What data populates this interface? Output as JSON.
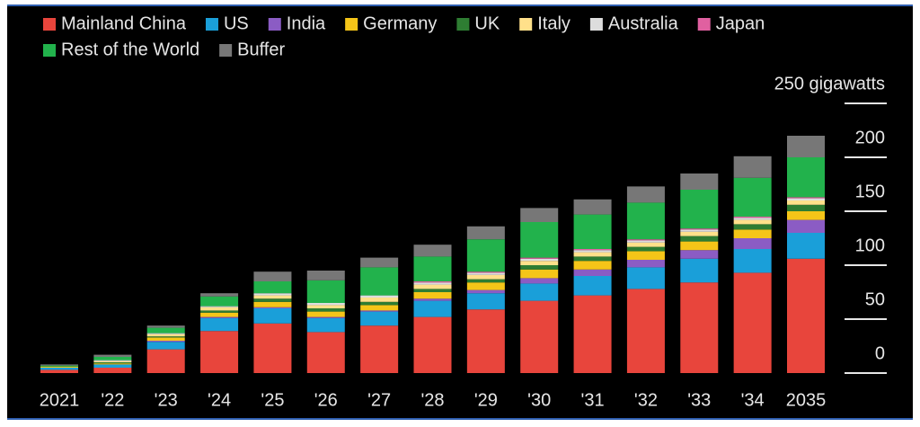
{
  "chart_data": {
    "type": "stacked_bar",
    "categories": [
      "2021",
      "'22",
      "'23",
      "'24",
      "'25",
      "'26",
      "'27",
      "'28",
      "'29",
      "'30",
      "'31",
      "'32",
      "'33",
      "'34",
      "2035"
    ],
    "series": [
      {
        "name": "Mainland China",
        "color": "#e8453c",
        "values": [
          3,
          5,
          22,
          39,
          46,
          38,
          44,
          52,
          59,
          67,
          72,
          78,
          84,
          93,
          106
        ]
      },
      {
        "name": "US",
        "color": "#1a9fd9",
        "values": [
          2,
          3,
          7,
          12,
          14,
          13,
          13,
          15,
          15,
          16,
          18,
          20,
          22,
          22,
          24
        ]
      },
      {
        "name": "India",
        "color": "#8b5cc4",
        "values": [
          0,
          0,
          1,
          1,
          1,
          1,
          1,
          2,
          3,
          5,
          6,
          7,
          8,
          10,
          12
        ]
      },
      {
        "name": "Germany",
        "color": "#f5c518",
        "values": [
          1,
          1,
          3,
          4,
          5,
          5,
          5,
          6,
          7,
          8,
          8,
          8,
          8,
          8,
          8
        ]
      },
      {
        "name": "UK",
        "color": "#2e7d32",
        "values": [
          0,
          1,
          1,
          2,
          3,
          3,
          3,
          3,
          3,
          4,
          4,
          4,
          5,
          5,
          6
        ]
      },
      {
        "name": "Italy",
        "color": "#ffe08a",
        "values": [
          0,
          1,
          2,
          3,
          3,
          3,
          4,
          4,
          4,
          4,
          4,
          4,
          4,
          4,
          4
        ]
      },
      {
        "name": "Australia",
        "color": "#dddddd",
        "values": [
          0,
          1,
          1,
          1,
          2,
          2,
          2,
          2,
          2,
          2,
          2,
          2,
          2,
          2,
          2
        ]
      },
      {
        "name": "Japan",
        "color": "#e060a0",
        "values": [
          0,
          0,
          0,
          0,
          0,
          0,
          0,
          1,
          1,
          1,
          1,
          1,
          1,
          1,
          1
        ]
      },
      {
        "name": "Rest of the World",
        "color": "#22b24c",
        "values": [
          1,
          3,
          5,
          9,
          11,
          21,
          26,
          23,
          30,
          33,
          32,
          34,
          36,
          36,
          37
        ]
      },
      {
        "name": "Buffer",
        "color": "#777777",
        "values": [
          1,
          2,
          2,
          3,
          9,
          9,
          9,
          11,
          12,
          13,
          14,
          15,
          15,
          20,
          20
        ]
      }
    ],
    "ylim": [
      0,
      250
    ],
    "yticks": [
      0,
      50,
      100,
      150,
      200,
      {
        "value": 250,
        "label": "250 gigawatts"
      }
    ]
  }
}
